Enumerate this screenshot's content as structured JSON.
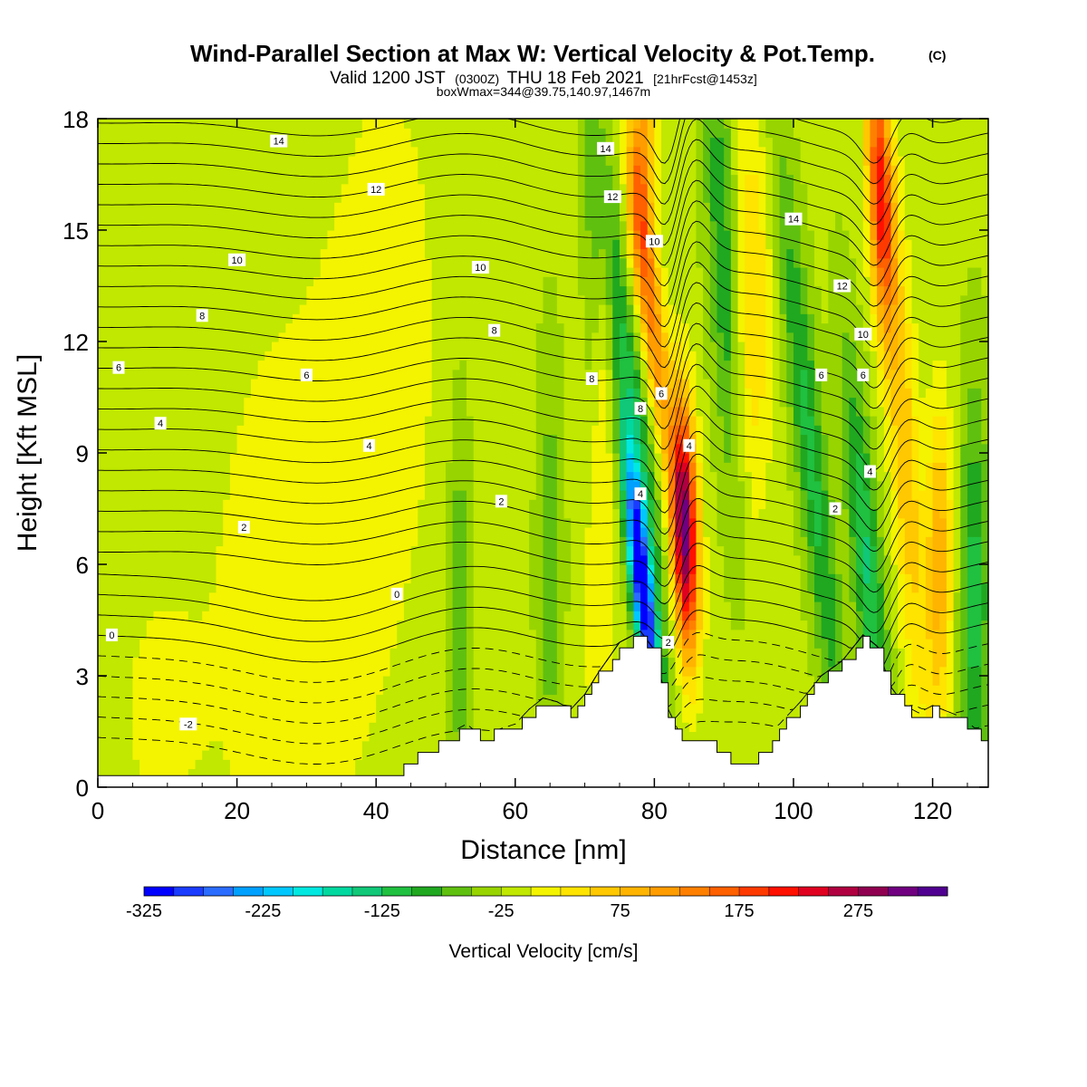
{
  "title": {
    "main": "Wind-Parallel Section at Max W: Vertical Velocity & Pot.Temp.",
    "copyright": "(C)",
    "valid_prefix": "Valid 1200 JST",
    "valid_utc": "(0300Z)",
    "valid_date": "THU 18 Feb 2021",
    "forecast": "[21hrFcst@1453z]",
    "boxwmax": "boxWmax=344@39.75,140.97,1467m"
  },
  "chart_data": {
    "type": "heatmap",
    "xlabel": "Distance [nm]",
    "ylabel": "Height [Kft MSL]",
    "xlim": [
      0,
      128
    ],
    "ylim": [
      0,
      18
    ],
    "xticks": [
      0,
      20,
      40,
      60,
      80,
      100,
      120
    ],
    "yticks": [
      0,
      3,
      6,
      9,
      12,
      15,
      18
    ],
    "colorbar": {
      "label": "Vertical Velocity [cm/s]",
      "min": -325,
      "max": 350,
      "step": 25,
      "tick_labels": [
        "-325",
        "-225",
        "-125",
        "-25",
        "75",
        "175",
        "275"
      ],
      "colors": [
        "#0000ff",
        "#1a3cff",
        "#2a6cff",
        "#00a0ff",
        "#00c8ff",
        "#00e8e0",
        "#00d8a0",
        "#10c878",
        "#20c040",
        "#20a820",
        "#60c010",
        "#98d400",
        "#c0e800",
        "#f4f400",
        "#ffe400",
        "#ffc800",
        "#ffb400",
        "#ff9c00",
        "#ff8000",
        "#ff6000",
        "#ff3a00",
        "#ff1000",
        "#e00020",
        "#b00040",
        "#900050",
        "#700080",
        "#500090"
      ]
    },
    "terrain_kft": [
      [
        0,
        0.3
      ],
      [
        42,
        0.3
      ],
      [
        44,
        0.6
      ],
      [
        50,
        1.3
      ],
      [
        53,
        1.6
      ],
      [
        55,
        1.3
      ],
      [
        60,
        1.6
      ],
      [
        62,
        2.0
      ],
      [
        64,
        2.3
      ],
      [
        66,
        2.2
      ],
      [
        68,
        2.0
      ],
      [
        70,
        2.4
      ],
      [
        72,
        3.0
      ],
      [
        75,
        3.8
      ],
      [
        78,
        4.1
      ],
      [
        80,
        3.6
      ],
      [
        82,
        2.0
      ],
      [
        84,
        1.2
      ],
      [
        88,
        1.1
      ],
      [
        90,
        0.8
      ],
      [
        94,
        0.7
      ],
      [
        96,
        1.0
      ],
      [
        98,
        1.6
      ],
      [
        101,
        2.2
      ],
      [
        104,
        2.9
      ],
      [
        107,
        3.3
      ],
      [
        110,
        4.0
      ],
      [
        112,
        3.7
      ],
      [
        114,
        2.6
      ],
      [
        116,
        2.1
      ],
      [
        118,
        1.9
      ],
      [
        120,
        2.1
      ],
      [
        124,
        1.8
      ],
      [
        126,
        1.5
      ],
      [
        128,
        1.3
      ]
    ],
    "isentrope_labels": [
      {
        "text": "-2",
        "x": 13,
        "y": 1.7
      },
      {
        "text": "0",
        "x": 2,
        "y": 4.1
      },
      {
        "text": "0",
        "x": 43,
        "y": 5.2
      },
      {
        "text": "2",
        "x": 21,
        "y": 7.0
      },
      {
        "text": "2",
        "x": 58,
        "y": 7.7
      },
      {
        "text": "2",
        "x": 82,
        "y": 3.9
      },
      {
        "text": "2",
        "x": 106,
        "y": 7.5
      },
      {
        "text": "4",
        "x": 9,
        "y": 9.8
      },
      {
        "text": "4",
        "x": 39,
        "y": 9.2
      },
      {
        "text": "4",
        "x": 78,
        "y": 7.9
      },
      {
        "text": "4",
        "x": 85,
        "y": 9.2
      },
      {
        "text": "4",
        "x": 111,
        "y": 8.5
      },
      {
        "text": "6",
        "x": 3,
        "y": 11.3
      },
      {
        "text": "6",
        "x": 30,
        "y": 11.1
      },
      {
        "text": "6",
        "x": 81,
        "y": 10.6
      },
      {
        "text": "6",
        "x": 104,
        "y": 11.1
      },
      {
        "text": "6",
        "x": 110,
        "y": 11.1
      },
      {
        "text": "8",
        "x": 15,
        "y": 12.7
      },
      {
        "text": "8",
        "x": 57,
        "y": 12.3
      },
      {
        "text": "8",
        "x": 71,
        "y": 11.0
      },
      {
        "text": "8",
        "x": 78,
        "y": 10.2
      },
      {
        "text": "10",
        "x": 20,
        "y": 14.2
      },
      {
        "text": "10",
        "x": 55,
        "y": 14.0
      },
      {
        "text": "10",
        "x": 80,
        "y": 14.7
      },
      {
        "text": "10",
        "x": 110,
        "y": 12.2
      },
      {
        "text": "12",
        "x": 40,
        "y": 16.1
      },
      {
        "text": "12",
        "x": 74,
        "y": 15.9
      },
      {
        "text": "12",
        "x": 107,
        "y": 13.5
      },
      {
        "text": "14",
        "x": 26,
        "y": 17.4
      },
      {
        "text": "14",
        "x": 73,
        "y": 17.2
      },
      {
        "text": "14",
        "x": 100,
        "y": 15.3
      }
    ]
  }
}
